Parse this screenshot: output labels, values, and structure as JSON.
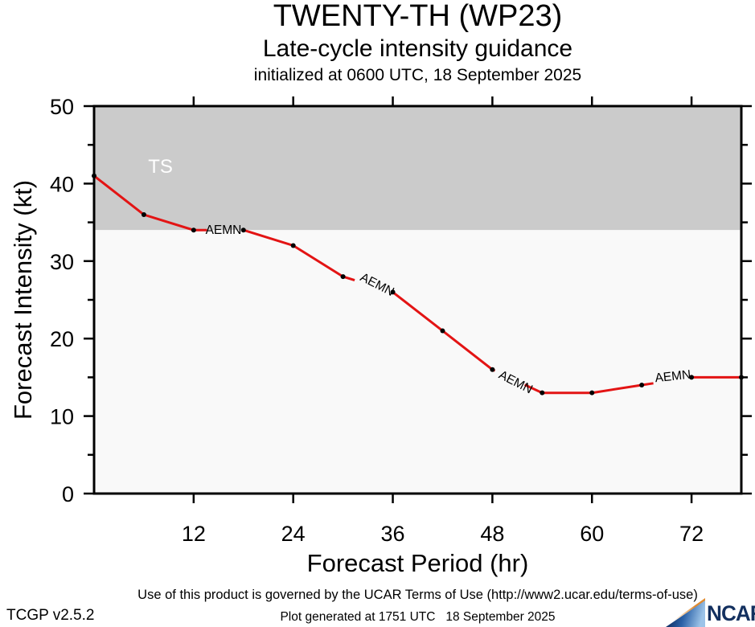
{
  "header": {
    "title": "TWENTY-TH (WP23)",
    "subtitle": "Late-cycle intensity guidance",
    "init_line": "initialized at 0600 UTC, 18 September 2025"
  },
  "chart_data": {
    "type": "line",
    "x": [
      0,
      6,
      12,
      18,
      24,
      30,
      36,
      42,
      48,
      54,
      60,
      66,
      72,
      78
    ],
    "series": [
      {
        "name": "AEMN",
        "color": "#e31414",
        "values": [
          41,
          36,
          34,
          34,
          32,
          28,
          26,
          21,
          16,
          13,
          13,
          14,
          15,
          15
        ]
      }
    ],
    "title": "TWENTY-TH (WP23) late-cycle intensity guidance",
    "xlabel": "Forecast Period (hr)",
    "ylabel": "Forecast Intensity (kt)",
    "xlim": [
      0,
      78
    ],
    "ylim": [
      0,
      50
    ],
    "xticks": [
      12,
      24,
      36,
      48,
      60,
      72
    ],
    "yticks_major": [
      0,
      10,
      20,
      30,
      40,
      50
    ],
    "yticks_minor": [
      5,
      15,
      25,
      35,
      45
    ],
    "grid": false,
    "legend_position": "none",
    "ts_threshold_kt": 34,
    "zone_colors": {
      "ts_zone": "#cbcbcb",
      "below_zone": "#f9f9f9"
    },
    "zone_label": {
      "text": "TS",
      "hr": 8,
      "kt": 42.2,
      "color": "#ffffff"
    },
    "marker_color": "#000000",
    "annotations": [
      {
        "text": "AEMN",
        "hr": 15.6,
        "kt": 34.1,
        "rotate_deg": 0
      },
      {
        "text": "AEMN",
        "hr": 33.9,
        "kt": 27.1,
        "rotate_deg": 27
      },
      {
        "text": "AEMN",
        "hr": 50.6,
        "kt": 14.5,
        "rotate_deg": 27
      },
      {
        "text": "AEMN",
        "hr": 69.8,
        "kt": 15.2,
        "rotate_deg": -6
      }
    ],
    "line_gaps_hr": [
      [
        13.6,
        18
      ],
      [
        31.4,
        36
      ],
      [
        48.3,
        51.9
      ],
      [
        67.4,
        72
      ]
    ]
  },
  "footer": {
    "terms": "Use of this product is governed by the UCAR Terms of Use (http://www2.ucar.edu/terms-of-use)",
    "version": "TCGP v2.5.2",
    "generated": "Plot generated at 1751 UTC   18 September 2025"
  },
  "branding": {
    "ncar_label": "NCAR",
    "navy": "#13305f"
  }
}
